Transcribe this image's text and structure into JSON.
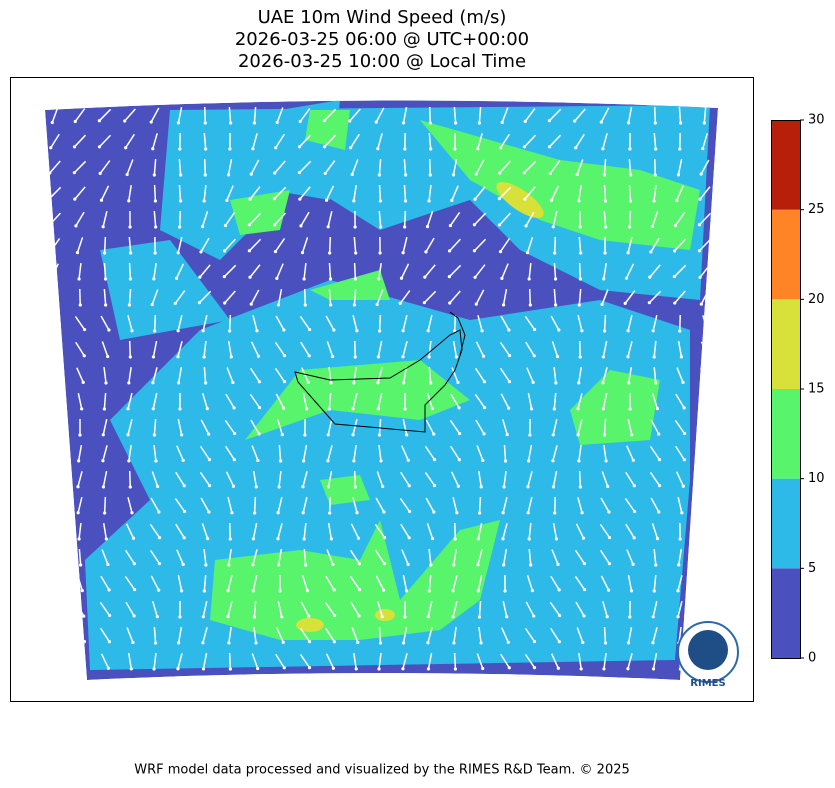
{
  "title": [
    "UAE 10m Wind Speed (m/s)",
    "2026-03-25 06:00 @ UTC+00:00",
    "2026-03-25 10:00 @ Local Time"
  ],
  "colorbar": {
    "lim": [
      0,
      30
    ],
    "ticks": [
      0,
      5,
      10,
      15,
      20,
      25,
      30
    ],
    "colors": [
      "#4a50be",
      "#2ebae8",
      "#57f46c",
      "#d8e03a",
      "#ff8426",
      "#b71f0b"
    ]
  },
  "logo": "RIMES",
  "footer": "WRF model data processed and visualized by the RIMES R&D Team. © 2025"
}
